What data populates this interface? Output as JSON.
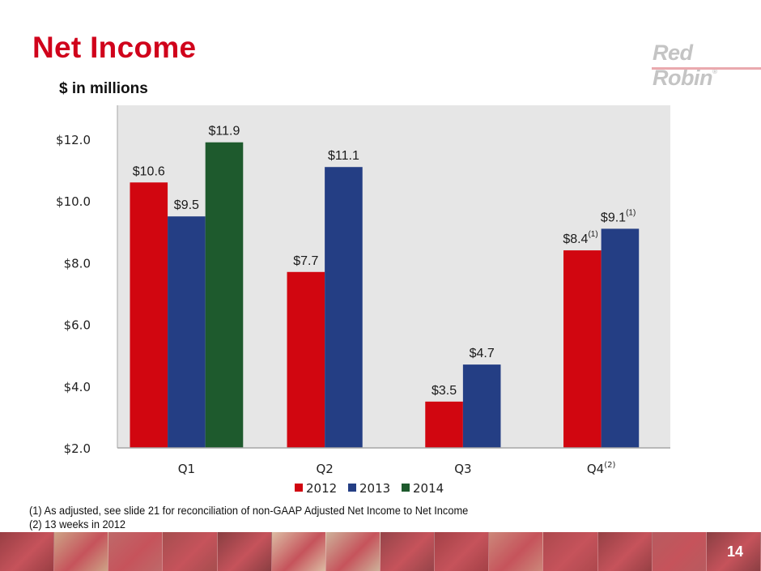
{
  "slide": {
    "title": "Net Income",
    "subtitle": "$ in millions",
    "logo_text": "Red Robin",
    "logo_mark": "®",
    "page_number": "14",
    "footnotes": [
      "(1) As adjusted, see slide 21 for reconciliation of non-GAAP Adjusted Net Income to Net Income",
      "(2) 13 weeks in 2012"
    ],
    "colors": {
      "title": "#d0021b",
      "plot_background": "#e6e6e6",
      "photo_strip_tint": "#b5343f"
    }
  },
  "chart_data": {
    "type": "bar",
    "title": "Net Income",
    "subtitle": "$ in millions",
    "xlabel": "",
    "ylabel": "",
    "ylim": [
      2.0,
      13.1
    ],
    "yticks": [
      2.0,
      4.0,
      6.0,
      8.0,
      10.0,
      12.0
    ],
    "ytick_labels": [
      "$2.0",
      "$4.0",
      "$6.0",
      "$8.0",
      "$10.0",
      "$12.0"
    ],
    "grid": false,
    "legend_position": "bottom-center",
    "categories": [
      "Q1",
      "Q2",
      "Q3",
      "Q4"
    ],
    "category_superscripts": [
      "",
      "",
      "",
      "(2)"
    ],
    "series": [
      {
        "name": "2012",
        "color": "#d10610",
        "values": [
          10.6,
          7.7,
          3.5,
          8.4
        ],
        "labels": [
          "$10.6",
          "$7.7",
          "$3.5",
          "$8.4"
        ],
        "label_superscripts": [
          "",
          "",
          "",
          "(1)"
        ]
      },
      {
        "name": "2013",
        "color": "#243e84",
        "values": [
          9.5,
          11.1,
          4.7,
          9.1
        ],
        "labels": [
          "$9.5",
          "$11.1",
          "$4.7",
          "$9.1"
        ],
        "label_superscripts": [
          "",
          "",
          "",
          "(1)"
        ]
      },
      {
        "name": "2014",
        "color": "#1e5a2d",
        "values": [
          11.9,
          null,
          null,
          null
        ],
        "labels": [
          "$11.9",
          null,
          null,
          null
        ],
        "label_superscripts": [
          "",
          "",
          "",
          ""
        ]
      }
    ]
  }
}
